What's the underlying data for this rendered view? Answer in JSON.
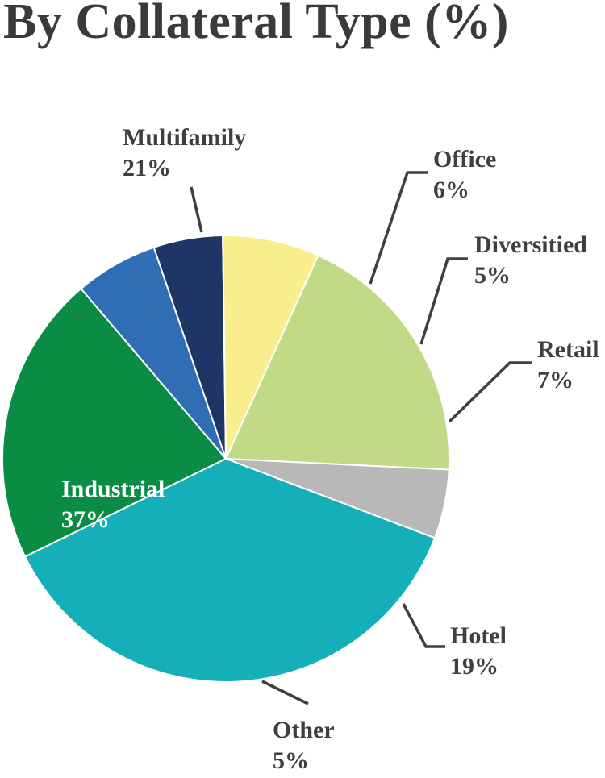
{
  "title": "By Collateral Type (%)",
  "chart_data": {
    "type": "pie",
    "title": "By Collateral Type (%)",
    "slices": [
      {
        "label": "Multifamily",
        "value": 21,
        "value_label": "21%",
        "color": "#0a8c44"
      },
      {
        "label": "Office",
        "value": 6,
        "value_label": "6%",
        "color": "#2f6db5"
      },
      {
        "label": "Diversitied",
        "value": 5,
        "value_label": "5%",
        "color": "#1f3565"
      },
      {
        "label": "Retail",
        "value": 7,
        "value_label": "7%",
        "color": "#f8ee8e"
      },
      {
        "label": "Hotel",
        "value": 19,
        "value_label": "19%",
        "color": "#c1da86"
      },
      {
        "label": "Other",
        "value": 5,
        "value_label": "5%",
        "color": "#b8b8b8"
      },
      {
        "label": "Industrial",
        "value": 37,
        "value_label": "37%",
        "color": "#14afb8"
      }
    ]
  }
}
